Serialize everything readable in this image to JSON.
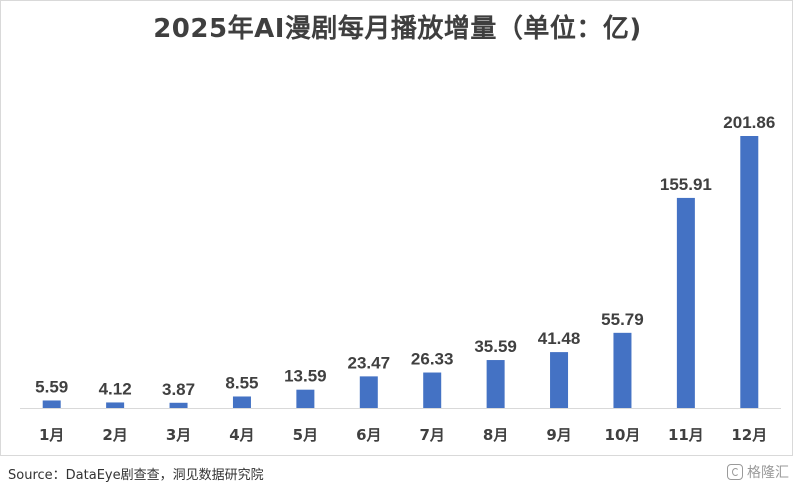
{
  "chart_data": {
    "type": "bar",
    "title": "2025年AI漫剧每月播放增量（单位：亿)",
    "categories": [
      "1月",
      "2月",
      "3月",
      "4月",
      "5月",
      "6月",
      "7月",
      "8月",
      "9月",
      "10月",
      "11月",
      "12月"
    ],
    "series": [
      {
        "values": [
          5.59,
          4.12,
          3.87,
          8.55,
          13.59,
          23.47,
          26.33,
          35.59,
          41.48,
          55.79,
          155.91,
          201.86
        ],
        "data_labels": [
          "5.59",
          "4.12",
          "3.87",
          "8.55",
          "13.59",
          "23.47",
          "26.33",
          "35.59",
          "41.48",
          "55.79",
          "155.91",
          "201.86"
        ]
      }
    ],
    "ylim": [
      0,
      201.86
    ],
    "bar_color": "#4472C4",
    "grid": false,
    "legend": "none"
  },
  "source": "Source：DataEye剧查查，洞见数据研究院",
  "watermark": {
    "icon": "gelonghui-logo-icon",
    "text": "格隆汇"
  }
}
